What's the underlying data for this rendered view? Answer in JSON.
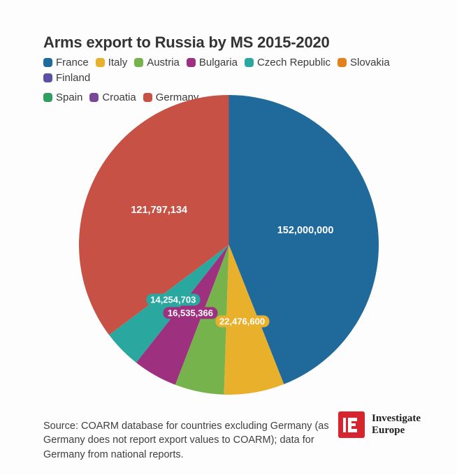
{
  "page": {
    "background": "#fdfdfd"
  },
  "header": {
    "title": "Arms export to Russia by MS 2015-2020"
  },
  "chart_data": {
    "type": "pie",
    "title": "Arms export to Russia by MS 2015-2020",
    "legend_position": "top",
    "label_text_color": "#ffffff",
    "start_angle_deg": 0,
    "direction": "clockwise",
    "slices": [
      {
        "name": "France",
        "color": "#20699b",
        "value": 152000000,
        "label": "152,000,000"
      },
      {
        "name": "Italy",
        "color": "#e9b02c",
        "value": 22476600,
        "label": "22,476,600"
      },
      {
        "name": "Austria",
        "color": "#77b34d",
        "value": 18300000,
        "label": null,
        "estimated": true
      },
      {
        "name": "Bulgaria",
        "color": "#9e3080",
        "value": 16535366,
        "label": "16,535,366"
      },
      {
        "name": "Czech Republic",
        "color": "#2aa8a0",
        "value": 14254703,
        "label": "14,254,703"
      },
      {
        "name": "Slovakia",
        "color": "#e3821c",
        "value": null,
        "label": null
      },
      {
        "name": "Finland",
        "color": "#5b51a5",
        "value": null,
        "label": null
      },
      {
        "name": "Spain",
        "color": "#2f9e60",
        "value": null,
        "label": null
      },
      {
        "name": "Croatia",
        "color": "#7a4896",
        "value": null,
        "label": null
      },
      {
        "name": "Germany",
        "color": "#c75144",
        "value": 121797134,
        "label": "121,797,134"
      }
    ]
  },
  "footer": {
    "source_text": "Source: COARM database for countries excluding Germany (as Germany does not report export values to COARM); data for Germany from national reports.",
    "logo": {
      "monogram": "E",
      "name": "Investigate Europe",
      "brand_color": "#d6252e"
    }
  }
}
